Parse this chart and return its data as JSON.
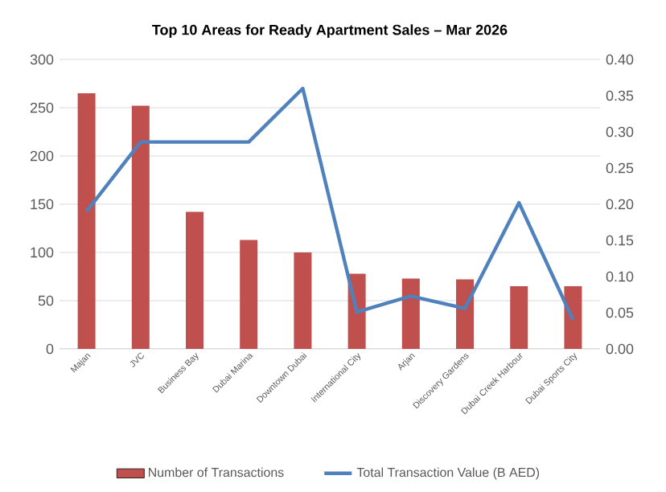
{
  "chart_data": {
    "type": "bar",
    "title": "Top 10  Areas for Ready Apartment Sales – Mar 2026",
    "categories": [
      "Majan",
      "JVC",
      "Business Bay",
      "Dubai Marina",
      "Downtown Dubai",
      "International City",
      "Arjan",
      "Discovery Gardens",
      "Dubai Creek Harbour",
      "Dubai Sports City"
    ],
    "series": [
      {
        "name": "Number of Transactions",
        "color": "#c0504d",
        "values": [
          265,
          252,
          142,
          113,
          100,
          78,
          73,
          72,
          65,
          65
        ]
      },
      {
        "name": "Total Transaction Value  (B AED)",
        "type": "line",
        "axis": "y2",
        "color": "#4f81bd",
        "values": [
          0.19,
          0.286,
          0.286,
          0.286,
          0.36,
          0.051,
          0.073,
          0.056,
          0.202,
          0.04
        ]
      }
    ],
    "ylim": [
      0,
      300
    ],
    "yticks": [
      0,
      50,
      100,
      150,
      200,
      250,
      300
    ],
    "y2lim": [
      0,
      0.4
    ],
    "y2ticks": [
      {
        "value": 0,
        "label": "0.00"
      },
      {
        "value": 0.05,
        "label": "0.05"
      },
      {
        "value": 0.1,
        "label": "0.10"
      },
      {
        "value": 0.15,
        "label": "0.15"
      },
      {
        "value": 0.2,
        "label": "0.20"
      },
      {
        "value": 0.25,
        "label": "0.25"
      },
      {
        "value": 0.3,
        "label": "0.30"
      },
      {
        "value": 0.35,
        "label": "0.35"
      },
      {
        "value": 0.4,
        "label": "0.40"
      }
    ],
    "grid": "y",
    "legend": "bottom",
    "marker": "none",
    "line_style": "solid"
  }
}
